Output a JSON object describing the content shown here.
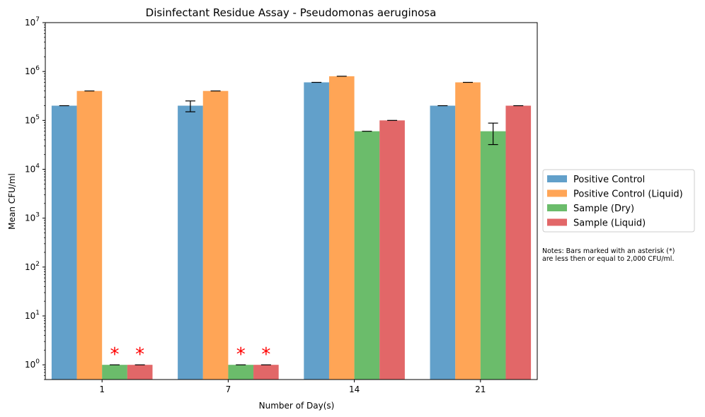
{
  "chart_data": {
    "type": "bar",
    "title": "Disinfectant Residue Assay - Pseudomonas aeruginosa",
    "xlabel": "Number of Day(s)",
    "ylabel": "Mean CFU/ml",
    "yscale": "log",
    "ylim": [
      0.5,
      10000000
    ],
    "categories": [
      "1",
      "7",
      "14",
      "21"
    ],
    "series": [
      {
        "name": "Positive Control",
        "color": "#1f77b4",
        "values": [
          200000,
          200000,
          600000,
          200000
        ],
        "errors": [
          0,
          50000,
          0,
          0
        ]
      },
      {
        "name": "Positive Control (Liquid)",
        "color": "#ff7f0e",
        "values": [
          400000,
          400000,
          800000,
          600000
        ],
        "errors": [
          0,
          0,
          0,
          0
        ]
      },
      {
        "name": "Sample (Dry)",
        "color": "#2ca02c",
        "values": [
          1,
          1,
          60000,
          60000
        ],
        "errors": [
          0,
          0,
          0,
          28000
        ]
      },
      {
        "name": "Sample (Liquid)",
        "color": "#d62728",
        "values": [
          1,
          1,
          100000,
          200000
        ],
        "errors": [
          0,
          0,
          0,
          0
        ]
      }
    ],
    "asterisk_marker": "*",
    "asterisk_color": "#ff0000",
    "asterisks": [
      {
        "category": "1",
        "series": "Sample (Dry)"
      },
      {
        "category": "1",
        "series": "Sample (Liquid)"
      },
      {
        "category": "7",
        "series": "Sample (Dry)"
      },
      {
        "category": "7",
        "series": "Sample (Liquid)"
      }
    ],
    "legend_position": "center-right, outside axes",
    "note_lines": [
      "Notes: Bars marked with an asterisk (*)",
      "are less then or equal to 2,000 CFU/ml."
    ],
    "grid": false
  }
}
